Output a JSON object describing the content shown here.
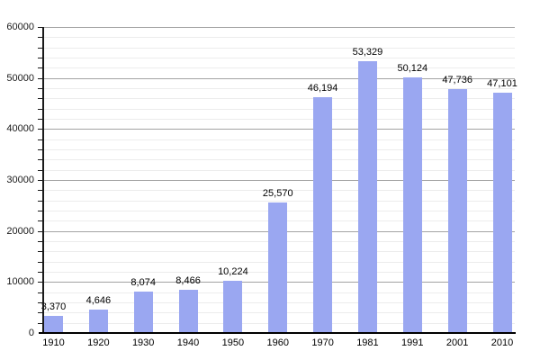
{
  "chart_data": {
    "type": "bar",
    "categories": [
      "1910",
      "1920",
      "1930",
      "1940",
      "1950",
      "1960",
      "1970",
      "1981",
      "1991",
      "2001",
      "2010"
    ],
    "values": [
      3370,
      4646,
      8074,
      8466,
      10224,
      25570,
      46194,
      53329,
      50124,
      47736,
      47101
    ],
    "value_labels": [
      "3,370",
      "4,646",
      "8,074",
      "8,466",
      "10,224",
      "25,570",
      "46,194",
      "53,329",
      "50,124",
      "47,736",
      "47,101"
    ],
    "y_tick_labels": [
      "0",
      "10000",
      "20000",
      "30000",
      "40000",
      "50000",
      "60000"
    ],
    "ylim": [
      0,
      60000
    ],
    "y_major_step": 10000,
    "y_minor_step": 2000,
    "grid": "major-and-minor",
    "legend": "none",
    "bar_color": "#9aa7f1",
    "major_grid_color": "#a3a3a3",
    "minor_grid_color": "#ececec",
    "axis_color": "#000000"
  }
}
